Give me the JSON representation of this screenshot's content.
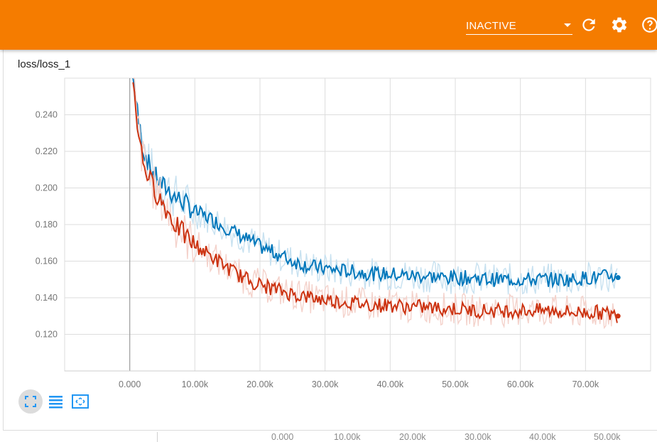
{
  "toolbar": {
    "run_select_value": "INACTIVE",
    "background_color": "#f57c00",
    "icons": [
      "refresh-icon",
      "settings-gear-icon",
      "help-icon"
    ]
  },
  "card": {
    "title": "loss/loss_1"
  },
  "controls": {
    "icons": [
      "fit-domain-icon",
      "data-table-icon",
      "expand-chart-icon"
    ],
    "accent_color": "#2196f3"
  },
  "chart_data": {
    "type": "line",
    "title": "loss/loss_1",
    "x_ticks": [
      "0.000",
      "10.00k",
      "20.00k",
      "30.00k",
      "40.00k",
      "50.00k",
      "60.00k",
      "70.00k"
    ],
    "y_ticks": [
      "0.120",
      "0.140",
      "0.160",
      "0.180",
      "0.200",
      "0.220",
      "0.240"
    ],
    "xlim": [
      -10000,
      80000
    ],
    "ylim": [
      0.1,
      0.26
    ],
    "grid": true,
    "series": [
      {
        "color": "#0077bb",
        "smoothed": true,
        "x": [
          500,
          1000,
          2000,
          3000,
          4000,
          5000,
          6000,
          7000,
          8000,
          9000,
          10000,
          12000,
          14000,
          16000,
          18000,
          20000,
          22000,
          25000,
          28000,
          30000,
          32000,
          35000,
          38000,
          40000,
          43000,
          45000,
          48000,
          50000,
          53000,
          55000,
          58000,
          60000,
          62000,
          65000,
          68000,
          70000,
          72000,
          74000,
          75000
        ],
        "y": [
          0.268,
          0.245,
          0.222,
          0.212,
          0.206,
          0.201,
          0.199,
          0.195,
          0.193,
          0.19,
          0.187,
          0.184,
          0.18,
          0.176,
          0.172,
          0.168,
          0.165,
          0.16,
          0.157,
          0.156,
          0.155,
          0.154,
          0.153,
          0.153,
          0.152,
          0.152,
          0.151,
          0.151,
          0.151,
          0.15,
          0.15,
          0.15,
          0.15,
          0.15,
          0.15,
          0.151,
          0.151,
          0.152,
          0.151
        ]
      },
      {
        "color": "#cc3311",
        "smoothed": true,
        "x": [
          500,
          1000,
          2000,
          3000,
          4000,
          5000,
          6000,
          7000,
          8000,
          9000,
          10000,
          12000,
          14000,
          16000,
          18000,
          20000,
          22000,
          25000,
          28000,
          30000,
          32000,
          35000,
          38000,
          40000,
          43000,
          45000,
          48000,
          50000,
          53000,
          55000,
          58000,
          60000,
          62000,
          65000,
          68000,
          70000,
          72000,
          74000,
          75000
        ],
        "y": [
          0.262,
          0.24,
          0.215,
          0.205,
          0.198,
          0.192,
          0.186,
          0.18,
          0.176,
          0.172,
          0.169,
          0.164,
          0.159,
          0.154,
          0.15,
          0.147,
          0.145,
          0.142,
          0.14,
          0.139,
          0.138,
          0.137,
          0.136,
          0.136,
          0.135,
          0.135,
          0.134,
          0.134,
          0.133,
          0.133,
          0.133,
          0.133,
          0.133,
          0.133,
          0.132,
          0.132,
          0.132,
          0.131,
          0.13
        ]
      }
    ]
  },
  "background_axis": {
    "ticks": [
      "0.000",
      "10.00k",
      "20.00k",
      "30.00k",
      "40.00k",
      "50.00k"
    ]
  }
}
